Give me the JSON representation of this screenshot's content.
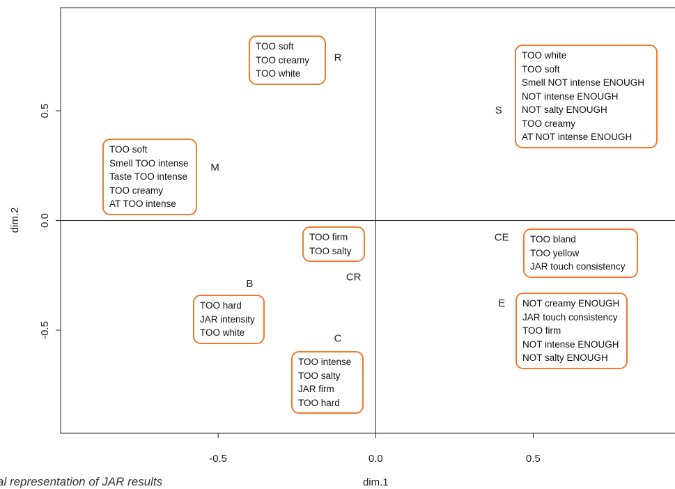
{
  "chart_data": {
    "type": "scatter",
    "xlabel": "dim.1",
    "ylabel": "dim.2",
    "xlim": [
      -1.0,
      0.95
    ],
    "ylim": [
      -0.97,
      0.97
    ],
    "x_ticks": [
      "-0.5",
      "0.0",
      "0.5"
    ],
    "y_ticks": [
      "-0.5",
      "0.0",
      "0.5"
    ],
    "points": [
      {
        "label": "R",
        "x": -0.12,
        "y": 0.74,
        "attributes": [
          "TOO soft",
          "TOO creamy",
          "TOO white"
        ]
      },
      {
        "label": "S",
        "x": 0.39,
        "y": 0.5,
        "attributes": [
          "TOO white",
          "TOO soft",
          "Smell NOT intense ENOUGH",
          "NOT intense ENOUGH",
          "NOT salty ENOUGH",
          "TOO creamy",
          "AT NOT intense ENOUGH"
        ]
      },
      {
        "label": "M",
        "x": -0.51,
        "y": 0.24,
        "attributes": [
          "TOO soft",
          "Smell TOO intense",
          "Taste TOO intense",
          "TOO creamy",
          "AT TOO intense"
        ]
      },
      {
        "label": "CE",
        "x": 0.4,
        "y": -0.08,
        "attributes": [
          "TOO bland",
          "TOO yellow",
          "JAR touch consistency"
        ]
      },
      {
        "label": "CR",
        "x": -0.07,
        "y": -0.26,
        "attributes": [
          "TOO firm",
          "TOO salty"
        ]
      },
      {
        "label": "B",
        "x": -0.4,
        "y": -0.29,
        "attributes": [
          "TOO hard",
          "JAR intensity",
          "TOO white"
        ]
      },
      {
        "label": "E",
        "x": 0.4,
        "y": -0.38,
        "attributes": [
          "NOT creamy ENOUGH",
          "JAR touch consistency",
          "TOO firm",
          "NOT intense ENOUGH",
          "NOT salty ENOUGH"
        ]
      },
      {
        "label": "C",
        "x": -0.12,
        "y": -0.54,
        "attributes": [
          "TOO intense",
          "TOO salty",
          "JAR firm",
          "TOO hard"
        ]
      }
    ],
    "grid": false,
    "reference_lines": {
      "x": 0.0,
      "y": 0.0
    }
  },
  "caption": "al representation of JAR results",
  "colors": {
    "box_border": "#ee7a2b",
    "axis": "#222222"
  }
}
